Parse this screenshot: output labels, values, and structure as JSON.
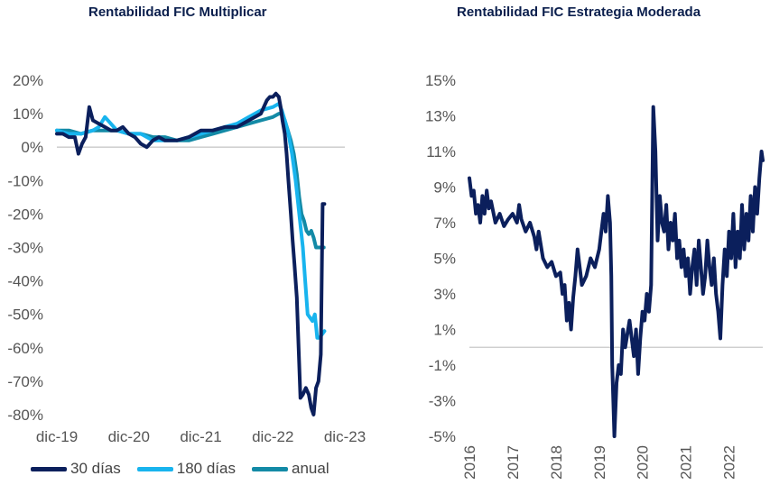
{
  "colors": {
    "thirty": "#0b1f5c",
    "oneeighty": "#18b4ee",
    "annual": "#138aa6",
    "axis": "#c8c8c8",
    "tick": "#555555"
  },
  "chart_data": [
    {
      "type": "line",
      "title": "Rentabilidad FIC Multiplicar",
      "xlabel": "",
      "ylabel": "",
      "x_tick_labels": [
        "dic-19",
        "dic-20",
        "dic-21",
        "dic-22",
        "dic-23"
      ],
      "y_tick_labels": [
        "20%",
        "10%",
        "0%",
        "-10%",
        "-20%",
        "-30%",
        "-40%",
        "-50%",
        "-60%",
        "-70%",
        "-80%"
      ],
      "y_ticks": [
        20,
        10,
        0,
        -10,
        -20,
        -30,
        -40,
        -50,
        -60,
        -70,
        -80
      ],
      "ylim": [
        -80,
        20
      ],
      "xlim": [
        0,
        48
      ],
      "x_unit": "months since dic-19",
      "legend_position": "bottom",
      "series": [
        {
          "name": "30 días",
          "color": "#0b1f5c",
          "x": [
            0,
            1,
            2,
            3,
            3.6,
            4.2,
            4.8,
            5.4,
            6,
            7,
            8,
            9,
            10,
            11,
            12,
            13,
            14,
            15,
            16,
            17,
            18,
            20,
            22,
            24,
            26,
            28,
            30,
            32,
            34,
            35,
            35.5,
            36,
            36.5,
            37,
            37.3,
            37.6,
            38,
            38.3,
            38.6,
            39,
            39.3,
            39.6,
            40,
            40.3,
            40.6,
            41,
            41.5,
            42,
            42.4,
            42.8,
            43.2,
            43.6,
            44,
            44.3,
            44.6
          ],
          "y": [
            4,
            4,
            3,
            3,
            -2,
            1,
            3,
            12,
            8,
            7,
            6,
            5,
            5,
            6,
            4,
            3,
            1,
            0,
            2,
            3,
            2,
            2,
            3,
            5,
            5,
            6,
            6,
            8,
            10,
            14,
            15,
            15,
            16,
            15,
            12,
            8,
            4,
            -2,
            -10,
            -20,
            -28,
            -35,
            -45,
            -60,
            -75,
            -74,
            -72,
            -74,
            -78,
            -80,
            -72,
            -70,
            -62,
            -17,
            -17
          ]
        },
        {
          "name": "180 días",
          "color": "#18b4ee",
          "x": [
            0,
            2,
            4,
            6,
            7,
            8,
            10,
            12,
            14,
            16,
            18,
            20,
            22,
            24,
            26,
            28,
            30,
            32,
            34,
            36,
            37,
            37.5,
            38,
            38.6,
            39.2,
            39.8,
            40.4,
            41,
            41.4,
            41.8,
            42.2,
            42.6,
            43,
            43.4,
            43.8,
            44.2,
            44.6
          ],
          "y": [
            5,
            4,
            4,
            5,
            6,
            9,
            5,
            4,
            4,
            2,
            2,
            2,
            3,
            4,
            5,
            6,
            7,
            9,
            11,
            12,
            13,
            11,
            8,
            4,
            -2,
            -10,
            -20,
            -30,
            -40,
            -50,
            -51,
            -52,
            -50,
            -57,
            -57,
            -56,
            -55
          ]
        },
        {
          "name": "anual",
          "color": "#138aa6",
          "x": [
            0,
            2,
            4,
            6,
            8,
            10,
            12,
            14,
            16,
            18,
            20,
            22,
            24,
            26,
            28,
            30,
            32,
            34,
            36,
            37,
            37.5,
            38,
            38.5,
            39,
            39.5,
            40,
            40.4,
            40.8,
            41.2,
            41.6,
            42,
            42.4,
            42.8,
            43.2,
            43.6,
            44,
            44.5
          ],
          "y": [
            5,
            5,
            4,
            5,
            5,
            5,
            4,
            4,
            3,
            3,
            2,
            2,
            3,
            4,
            5,
            6,
            7,
            8,
            9,
            10,
            10,
            8,
            5,
            2,
            -2,
            -8,
            -15,
            -20,
            -22,
            -25,
            -26,
            -25,
            -27,
            -30,
            -30,
            -30,
            -30
          ]
        }
      ]
    },
    {
      "type": "line",
      "title": "Rentabilidad FIC Estrategia Moderada",
      "xlabel": "",
      "ylabel": "",
      "x_tick_labels": [
        "2016",
        "2017",
        "2018",
        "2019",
        "2020",
        "2021",
        "2022"
      ],
      "y_tick_labels": [
        "15%",
        "13%",
        "11%",
        "9%",
        "7%",
        "5%",
        "3%",
        "1%",
        "-1%",
        "-3%",
        "-5%"
      ],
      "y_ticks": [
        15,
        13,
        11,
        9,
        7,
        5,
        3,
        1,
        -1,
        -3,
        -5
      ],
      "ylim": [
        -5,
        15
      ],
      "xlim": [
        2016.0,
        2022.78
      ],
      "legend_position": "none",
      "series": [
        {
          "name": "",
          "color": "#0b1f5c",
          "x": [
            2016.0,
            2016.05,
            2016.1,
            2016.15,
            2016.2,
            2016.25,
            2016.3,
            2016.35,
            2016.4,
            2016.45,
            2016.5,
            2016.6,
            2016.7,
            2016.8,
            2016.9,
            2017.0,
            2017.1,
            2017.15,
            2017.2,
            2017.3,
            2017.4,
            2017.5,
            2017.55,
            2017.6,
            2017.7,
            2017.8,
            2017.9,
            2018.0,
            2018.1,
            2018.15,
            2018.2,
            2018.25,
            2018.3,
            2018.35,
            2018.4,
            2018.45,
            2018.5,
            2018.55,
            2018.6,
            2018.7,
            2018.8,
            2018.9,
            2019.0,
            2019.05,
            2019.1,
            2019.15,
            2019.2,
            2019.25,
            2019.28,
            2019.3,
            2019.35,
            2019.4,
            2019.45,
            2019.5,
            2019.55,
            2019.6,
            2019.7,
            2019.8,
            2019.85,
            2019.9,
            2019.95,
            2020.0,
            2020.05,
            2020.1,
            2020.15,
            2020.2,
            2020.25,
            2020.3,
            2020.35,
            2020.4,
            2020.45,
            2020.5,
            2020.55,
            2020.6,
            2020.65,
            2020.7,
            2020.75,
            2020.8,
            2020.85,
            2020.9,
            2020.95,
            2021.0,
            2021.05,
            2021.1,
            2021.15,
            2021.2,
            2021.25,
            2021.3,
            2021.35,
            2021.4,
            2021.45,
            2021.5,
            2021.55,
            2021.6,
            2021.65,
            2021.7,
            2021.75,
            2021.8,
            2021.85,
            2021.9,
            2021.95,
            2022.0,
            2022.05,
            2022.1,
            2022.15,
            2022.2,
            2022.25,
            2022.3,
            2022.35,
            2022.4,
            2022.45,
            2022.5,
            2022.55,
            2022.6,
            2022.65,
            2022.7,
            2022.75,
            2022.78
          ],
          "y": [
            9.5,
            8.5,
            8.8,
            7.5,
            8.0,
            7.0,
            8.5,
            7.5,
            8.8,
            7.8,
            8.2,
            7.0,
            7.5,
            6.8,
            7.2,
            7.5,
            7.0,
            8.0,
            7.2,
            6.5,
            7.0,
            6.2,
            5.5,
            6.5,
            5.0,
            4.5,
            4.8,
            4.0,
            4.2,
            3.0,
            3.5,
            1.5,
            2.5,
            1.0,
            2.8,
            4.0,
            5.5,
            4.5,
            3.5,
            4.0,
            5.0,
            4.5,
            5.5,
            6.5,
            7.5,
            6.5,
            8.5,
            7.0,
            4.0,
            -1.0,
            -5.0,
            -2.0,
            -1.0,
            -1.5,
            1.0,
            0.0,
            1.5,
            -0.5,
            1.0,
            -1.5,
            0.5,
            2.0,
            1.5,
            3.0,
            2.0,
            3.5,
            13.5,
            11.0,
            6.0,
            8.5,
            7.0,
            6.5,
            8.0,
            5.5,
            7.0,
            6.0,
            7.5,
            5.0,
            6.0,
            4.5,
            5.5,
            4.0,
            5.0,
            3.0,
            4.5,
            5.5,
            3.5,
            6.0,
            4.5,
            3.0,
            4.0,
            6.0,
            4.5,
            3.5,
            5.0,
            3.0,
            2.0,
            0.5,
            3.5,
            5.5,
            4.0,
            6.5,
            5.0,
            7.5,
            4.5,
            6.5,
            5.0,
            8.0,
            5.5,
            7.5,
            6.0,
            8.5,
            6.5,
            9.0,
            7.5,
            9.5,
            11.0,
            10.5
          ]
        }
      ]
    }
  ],
  "legend": [
    {
      "label": "30 días",
      "color": "#0b1f5c"
    },
    {
      "label": "180 días",
      "color": "#18b4ee"
    },
    {
      "label": "anual",
      "color": "#138aa6"
    }
  ]
}
